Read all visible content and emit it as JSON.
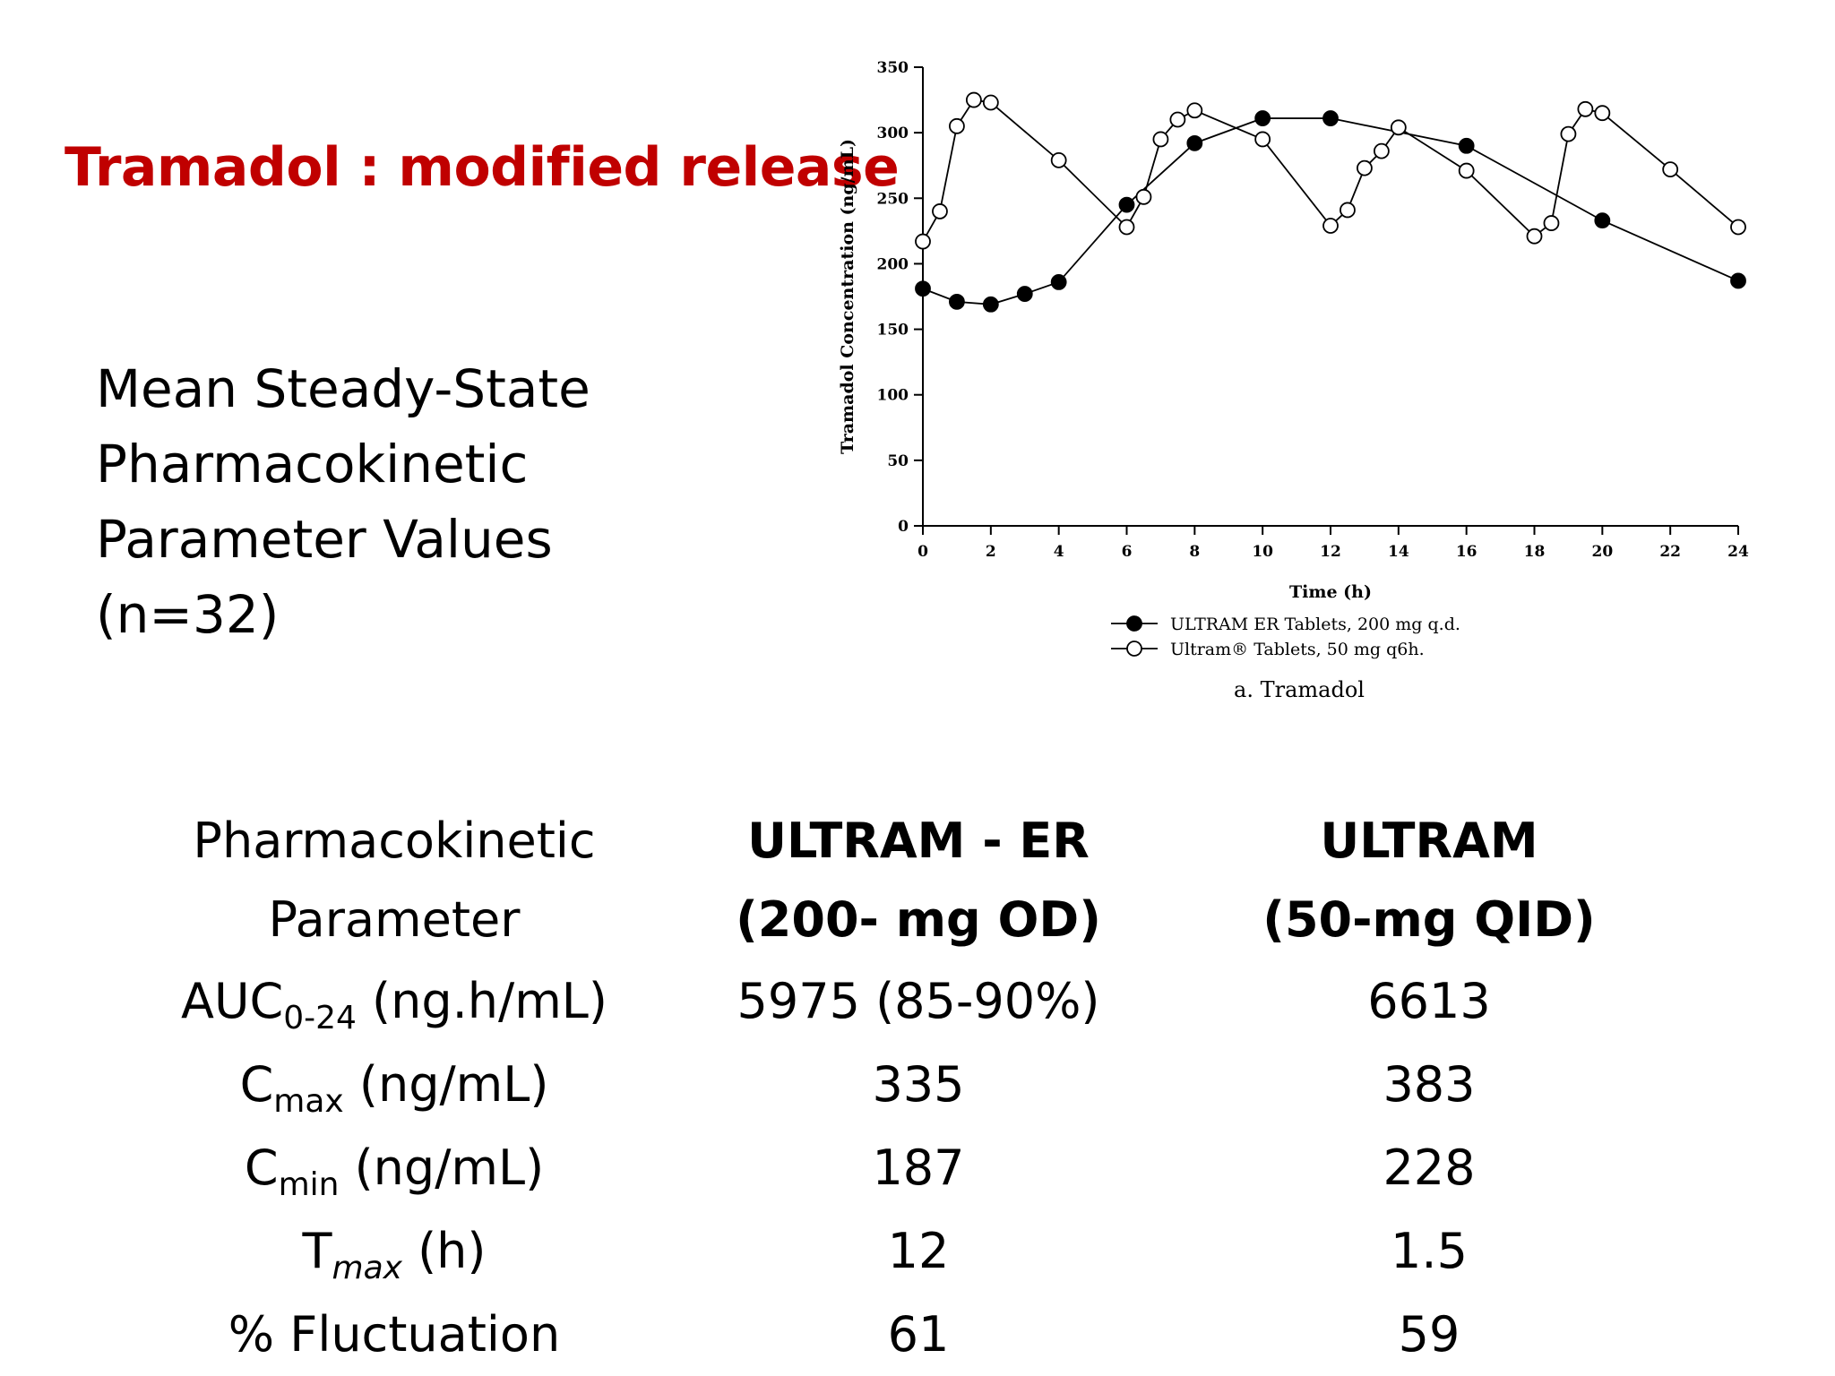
{
  "slide": {
    "title": "Tramadol : modified release",
    "subtitle_lines": [
      "Mean Steady-State",
      "Pharmacokinetic",
      "Parameter Values",
      "(n=32)"
    ]
  },
  "colors": {
    "title": "#c00000",
    "text": "#000000",
    "chart": "#000000"
  },
  "chart_data": {
    "type": "line",
    "title": "",
    "caption": "a. Tramadol",
    "xlabel": "Time (h)",
    "ylabel": "Tramadol Concentration (ng/mL)",
    "xlim": [
      0,
      24
    ],
    "ylim": [
      0,
      350
    ],
    "xticks": [
      0,
      2,
      4,
      6,
      8,
      10,
      12,
      14,
      16,
      18,
      20,
      22,
      24
    ],
    "yticks": [
      0,
      50,
      100,
      150,
      200,
      250,
      300,
      350
    ],
    "grid": false,
    "legend_position": "bottom",
    "series": [
      {
        "name": "ULTRAM ER Tablets, 200 mg q.d.",
        "marker": "filled-circle",
        "x": [
          0,
          1,
          2,
          3,
          4,
          6,
          8,
          10,
          12,
          16,
          20,
          24
        ],
        "y": [
          181,
          171,
          169,
          177,
          186,
          245,
          292,
          311,
          311,
          290,
          233,
          187
        ]
      },
      {
        "name": "Ultram® Tablets, 50 mg q6h.",
        "marker": "open-circle",
        "x": [
          0,
          0.5,
          1,
          1.5,
          2,
          4,
          6,
          6.5,
          7,
          7.5,
          8,
          10,
          12,
          12.5,
          13,
          13.5,
          14,
          16,
          18,
          18.5,
          19,
          19.5,
          20,
          22,
          24
        ],
        "y": [
          217,
          240,
          305,
          325,
          323,
          279,
          228,
          251,
          295,
          310,
          317,
          295,
          229,
          241,
          273,
          286,
          304,
          271,
          221,
          231,
          299,
          318,
          315,
          272,
          228
        ]
      }
    ]
  },
  "table": {
    "headers": [
      {
        "lines": [
          "Pharmacokinetic",
          "Parameter"
        ],
        "bold": false
      },
      {
        "lines": [
          "ULTRAM - ER",
          "(200- mg OD)"
        ],
        "bold": true
      },
      {
        "lines": [
          "ULTRAM",
          "(50-mg QID)"
        ],
        "bold": true
      }
    ],
    "rows": [
      {
        "param_main": "AUC",
        "param_sub": "0-24",
        "param_sub_italic": false,
        "param_unit": " (ng.h/mL)",
        "er": "5975 (85-90%)",
        "ir": "6613"
      },
      {
        "param_main": "C",
        "param_sub": "max",
        "param_sub_italic": false,
        "param_unit": " (ng/mL)",
        "er": "335",
        "ir": "383"
      },
      {
        "param_main": "C",
        "param_sub": "min",
        "param_sub_italic": false,
        "param_unit": " (ng/mL)",
        "er": "187",
        "ir": "228"
      },
      {
        "param_main": "T",
        "param_sub": "max",
        "param_sub_italic": true,
        "param_unit": " (h)",
        "er": "12",
        "ir": "1.5"
      },
      {
        "param_main": "% Fluctuation",
        "param_sub": "",
        "param_sub_italic": false,
        "param_unit": "",
        "er": "61",
        "ir": "59"
      }
    ]
  }
}
